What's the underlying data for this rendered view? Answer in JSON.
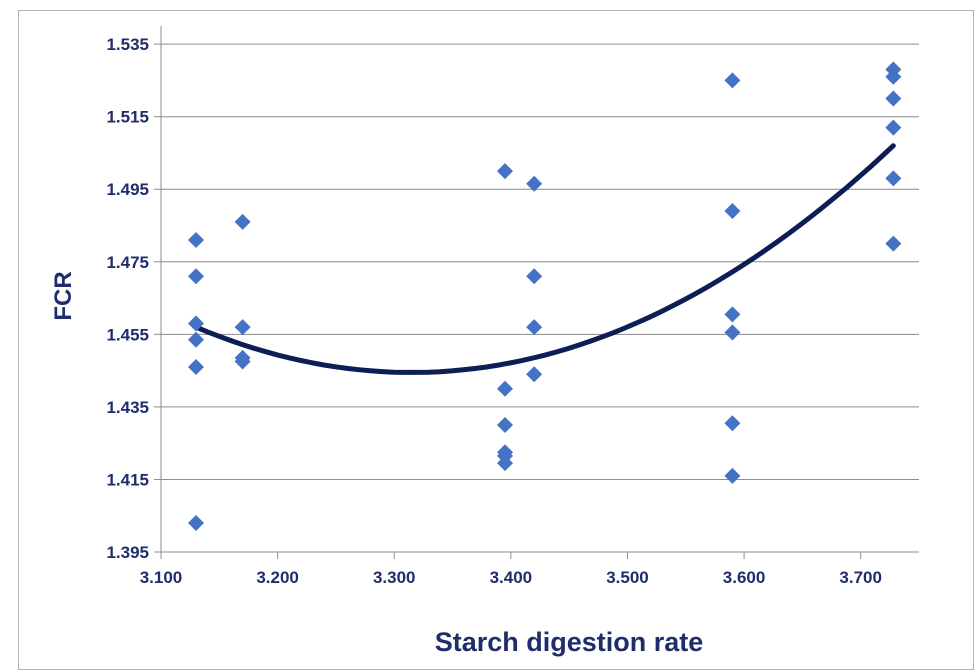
{
  "chart_data": {
    "type": "scatter",
    "xlabel": "Starch digestion rate",
    "ylabel": "FCR",
    "xlim": [
      3.1,
      3.75
    ],
    "ylim": [
      1.395,
      1.54
    ],
    "x_ticks": [
      "3.100",
      "3.200",
      "3.300",
      "3.400",
      "3.500",
      "3.600",
      "3.700"
    ],
    "y_ticks": [
      "1.395",
      "1.415",
      "1.435",
      "1.455",
      "1.475",
      "1.495",
      "1.515",
      "1.535"
    ],
    "grid": "horizontal",
    "marker_color": "#4472c4",
    "trendline_color": "#0d1e55",
    "series": [
      {
        "points": [
          [
            3.13,
            1.481
          ],
          [
            3.13,
            1.471
          ],
          [
            3.13,
            1.458
          ],
          [
            3.13,
            1.4535
          ],
          [
            3.13,
            1.446
          ],
          [
            3.13,
            1.403
          ],
          [
            3.17,
            1.486
          ],
          [
            3.17,
            1.457
          ],
          [
            3.17,
            1.4485
          ],
          [
            3.17,
            1.4475
          ],
          [
            3.395,
            1.5
          ],
          [
            3.395,
            1.44
          ],
          [
            3.395,
            1.43
          ],
          [
            3.395,
            1.4225
          ],
          [
            3.395,
            1.4215
          ],
          [
            3.395,
            1.4195
          ],
          [
            3.42,
            1.4965
          ],
          [
            3.42,
            1.471
          ],
          [
            3.42,
            1.457
          ],
          [
            3.42,
            1.444
          ],
          [
            3.59,
            1.525
          ],
          [
            3.59,
            1.489
          ],
          [
            3.59,
            1.4605
          ],
          [
            3.59,
            1.4555
          ],
          [
            3.59,
            1.4305
          ],
          [
            3.59,
            1.416
          ],
          [
            3.728,
            1.528
          ],
          [
            3.728,
            1.526
          ],
          [
            3.728,
            1.52
          ],
          [
            3.728,
            1.512
          ],
          [
            3.728,
            1.498
          ],
          [
            3.728,
            1.48
          ]
        ]
      }
    ],
    "trendline": {
      "type": "polynomial",
      "order": 2,
      "x_range": [
        3.13,
        3.728
      ],
      "points": [
        [
          3.13,
          1.457
        ],
        [
          3.31,
          1.4445
        ],
        [
          3.728,
          1.507
        ]
      ]
    }
  }
}
